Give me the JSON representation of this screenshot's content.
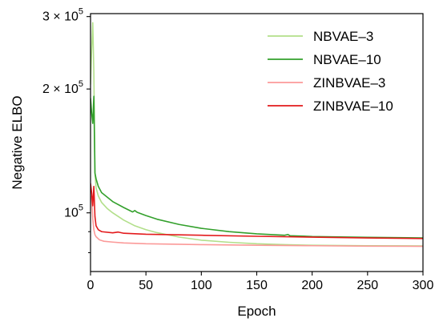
{
  "chart_data": {
    "type": "line",
    "xlabel": "Epoch",
    "ylabel": "Negative ELBO",
    "xlim": [
      0,
      300
    ],
    "ylim": [
      72000,
      305000
    ],
    "yscale": "log",
    "legend_position": "top-right",
    "grid": false,
    "x_ticks": [
      {
        "value": 0,
        "label": "0"
      },
      {
        "value": 50,
        "label": "50"
      },
      {
        "value": 100,
        "label": "100"
      },
      {
        "value": 150,
        "label": "150"
      },
      {
        "value": 200,
        "label": "200"
      },
      {
        "value": 250,
        "label": "250"
      },
      {
        "value": 300,
        "label": "300"
      }
    ],
    "y_major_ticks": [
      {
        "value": 100000,
        "label_base": "10",
        "label_exp": "5"
      },
      {
        "value": 200000,
        "label_base": "2 × 10",
        "label_exp": "5"
      },
      {
        "value": 300000,
        "label_base": "3 × 10",
        "label_exp": "5"
      }
    ],
    "y_minor_ticks": [
      80000,
      90000
    ],
    "series": [
      {
        "name": "NBVAE–3",
        "color": "#b2df8a",
        "points": [
          [
            0,
            205000
          ],
          [
            1,
            248000
          ],
          [
            2,
            290000
          ],
          [
            3,
            220000
          ],
          [
            4,
            125000
          ],
          [
            5,
            115000
          ],
          [
            7,
            110000
          ],
          [
            10,
            106000
          ],
          [
            15,
            102500
          ],
          [
            20,
            100000
          ],
          [
            30,
            96000
          ],
          [
            40,
            93000
          ],
          [
            50,
            91000
          ],
          [
            60,
            89500
          ],
          [
            80,
            87300
          ],
          [
            100,
            85800
          ],
          [
            125,
            84800
          ],
          [
            150,
            84100
          ],
          [
            175,
            83700
          ],
          [
            200,
            83400
          ],
          [
            250,
            83200
          ],
          [
            300,
            83100
          ]
        ]
      },
      {
        "name": "NBVAE–10",
        "color": "#33a02c",
        "points": [
          [
            0,
            190000
          ],
          [
            1,
            175000
          ],
          [
            2,
            165000
          ],
          [
            3,
            192000
          ],
          [
            4,
            125000
          ],
          [
            5,
            121000
          ],
          [
            7,
            116000
          ],
          [
            10,
            112000
          ],
          [
            20,
            106500
          ],
          [
            30,
            103000
          ],
          [
            38,
            100500
          ],
          [
            40,
            101300
          ],
          [
            42,
            100300
          ],
          [
            50,
            98500
          ],
          [
            60,
            96500
          ],
          [
            80,
            93700
          ],
          [
            100,
            91700
          ],
          [
            125,
            90000
          ],
          [
            150,
            88900
          ],
          [
            175,
            88200
          ],
          [
            178,
            88600
          ],
          [
            180,
            88000
          ],
          [
            200,
            87600
          ],
          [
            250,
            87200
          ],
          [
            300,
            86900
          ]
        ]
      },
      {
        "name": "ZINBVAE–3",
        "color": "#fb9a99",
        "points": [
          [
            0,
            110000
          ],
          [
            1,
            108000
          ],
          [
            2,
            97000
          ],
          [
            3,
            91000
          ],
          [
            4,
            88500
          ],
          [
            5,
            87500
          ],
          [
            8,
            86000
          ],
          [
            12,
            85300
          ],
          [
            20,
            84900
          ],
          [
            30,
            84500
          ],
          [
            50,
            84100
          ],
          [
            100,
            83700
          ],
          [
            150,
            83400
          ],
          [
            200,
            83200
          ],
          [
            250,
            83000
          ],
          [
            300,
            82900
          ]
        ]
      },
      {
        "name": "ZINBVAE–10",
        "color": "#e31a1c",
        "points": [
          [
            0,
            118000
          ],
          [
            1,
            112000
          ],
          [
            2,
            104000
          ],
          [
            3,
            116000
          ],
          [
            4,
            98000
          ],
          [
            5,
            93000
          ],
          [
            7,
            91000
          ],
          [
            10,
            90000
          ],
          [
            20,
            89400
          ],
          [
            25,
            89800
          ],
          [
            30,
            89200
          ],
          [
            50,
            88700
          ],
          [
            100,
            88200
          ],
          [
            150,
            87700
          ],
          [
            200,
            87300
          ],
          [
            250,
            86900
          ],
          [
            300,
            86600
          ]
        ]
      }
    ]
  }
}
